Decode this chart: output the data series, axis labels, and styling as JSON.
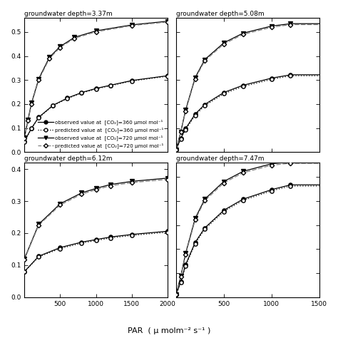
{
  "subplots": [
    {
      "title": "groundwater depth=3.37m",
      "row": 0,
      "col": 0,
      "xlim": [
        0,
        2000
      ],
      "ylim": [
        0,
        0.56
      ],
      "xticks": [
        500,
        1000,
        1500,
        2000
      ],
      "yticks": [
        0.0,
        0.1,
        0.2,
        0.3,
        0.4,
        0.5
      ],
      "show_legend": true,
      "obs360_x": [
        0,
        100,
        200,
        400,
        600,
        800,
        1000,
        1200,
        1500,
        2000
      ],
      "obs360_y": [
        0.045,
        0.1,
        0.145,
        0.195,
        0.225,
        0.248,
        0.265,
        0.278,
        0.298,
        0.318
      ],
      "pred360_x": [
        0,
        100,
        200,
        400,
        600,
        800,
        1000,
        1200,
        1500,
        2000
      ],
      "pred360_y": [
        0.042,
        0.098,
        0.143,
        0.193,
        0.223,
        0.246,
        0.263,
        0.276,
        0.296,
        0.316
      ],
      "obs720_x": [
        0,
        50,
        100,
        200,
        350,
        500,
        700,
        1000,
        1500,
        2000
      ],
      "obs720_y": [
        0.06,
        0.135,
        0.205,
        0.305,
        0.395,
        0.44,
        0.478,
        0.505,
        0.53,
        0.545
      ],
      "pred720_x": [
        0,
        50,
        100,
        200,
        350,
        500,
        700,
        1000,
        1500,
        2000
      ],
      "pred720_y": [
        0.058,
        0.13,
        0.2,
        0.3,
        0.39,
        0.436,
        0.474,
        0.501,
        0.527,
        0.542
      ]
    },
    {
      "title": "groundwater depth=5.08m",
      "row": 0,
      "col": 1,
      "xlim": [
        0,
        1500
      ],
      "ylim": [
        0,
        0.56
      ],
      "xticks": [
        500,
        1000,
        1500
      ],
      "yticks": [
        0.0,
        0.1,
        0.2,
        0.3,
        0.4,
        0.5
      ],
      "show_legend": false,
      "obs360_x": [
        0,
        50,
        100,
        200,
        300,
        500,
        700,
        1000,
        1200
      ],
      "obs360_y": [
        0.01,
        0.058,
        0.098,
        0.158,
        0.198,
        0.248,
        0.278,
        0.308,
        0.322
      ],
      "pred360_x": [
        0,
        50,
        100,
        200,
        300,
        500,
        700,
        1000,
        1200
      ],
      "pred360_y": [
        0.01,
        0.055,
        0.093,
        0.153,
        0.193,
        0.243,
        0.273,
        0.303,
        0.318
      ],
      "obs720_x": [
        0,
        50,
        100,
        200,
        300,
        500,
        700,
        1000,
        1200
      ],
      "obs720_y": [
        0.01,
        0.085,
        0.175,
        0.31,
        0.385,
        0.455,
        0.495,
        0.525,
        0.535
      ],
      "pred720_x": [
        0,
        50,
        100,
        200,
        300,
        500,
        700,
        1000,
        1200
      ],
      "pred720_y": [
        0.01,
        0.083,
        0.17,
        0.305,
        0.38,
        0.45,
        0.49,
        0.52,
        0.531
      ]
    },
    {
      "title": "groundwater depth=6.12m",
      "row": 1,
      "col": 0,
      "xlim": [
        0,
        2000
      ],
      "ylim": [
        0,
        0.42
      ],
      "xticks": [
        500,
        1000,
        1500,
        2000
      ],
      "yticks": [
        0.0,
        0.1,
        0.2,
        0.3,
        0.4
      ],
      "show_legend": false,
      "obs360_x": [
        0,
        200,
        500,
        800,
        1000,
        1200,
        1500,
        2000
      ],
      "obs360_y": [
        0.08,
        0.128,
        0.155,
        0.172,
        0.18,
        0.188,
        0.196,
        0.206
      ],
      "pred360_x": [
        0,
        200,
        500,
        800,
        1000,
        1200,
        1500,
        2000
      ],
      "pred360_y": [
        0.079,
        0.126,
        0.152,
        0.169,
        0.177,
        0.185,
        0.193,
        0.203
      ],
      "obs720_x": [
        0,
        200,
        500,
        800,
        1000,
        1200,
        1500,
        2000
      ],
      "obs720_y": [
        0.12,
        0.228,
        0.292,
        0.326,
        0.34,
        0.352,
        0.362,
        0.372
      ],
      "pred720_x": [
        0,
        200,
        500,
        800,
        1000,
        1200,
        1500,
        2000
      ],
      "pred720_y": [
        0.118,
        0.225,
        0.288,
        0.322,
        0.336,
        0.348,
        0.358,
        0.368
      ]
    },
    {
      "title": "groundwater depth=7.47m",
      "row": 1,
      "col": 1,
      "xlim": [
        0,
        1500
      ],
      "ylim": [
        0,
        0.56
      ],
      "xticks": [
        500,
        1000,
        1500
      ],
      "yticks": [
        0.0,
        0.1,
        0.2,
        0.3,
        0.4,
        0.5
      ],
      "show_legend": false,
      "obs360_x": [
        0,
        50,
        100,
        200,
        300,
        500,
        700,
        1000,
        1200
      ],
      "obs360_y": [
        0.01,
        0.065,
        0.135,
        0.228,
        0.288,
        0.362,
        0.408,
        0.448,
        0.468
      ],
      "pred360_x": [
        0,
        50,
        100,
        200,
        300,
        500,
        700,
        1000,
        1200
      ],
      "pred360_y": [
        0.01,
        0.062,
        0.13,
        0.223,
        0.283,
        0.357,
        0.403,
        0.443,
        0.463
      ],
      "obs720_x": [
        0,
        50,
        100,
        200,
        300,
        500,
        700,
        1000,
        1200
      ],
      "obs720_y": [
        0.01,
        0.088,
        0.182,
        0.328,
        0.408,
        0.482,
        0.524,
        0.556,
        0.564
      ],
      "pred720_x": [
        0,
        50,
        100,
        200,
        300,
        500,
        700,
        1000,
        1200
      ],
      "pred720_y": [
        0.01,
        0.085,
        0.177,
        0.322,
        0.402,
        0.476,
        0.518,
        0.55,
        0.558
      ]
    }
  ],
  "xlabel": "PAR  ( μ molm⁻² s⁻¹ )",
  "legend_entries": [
    "observed value at  [CO₂]=360 μmol mol⁻¹",
    "predicted value at  [CO₂]=360 μmol mol⁻¹",
    "observed value at  [CO₂]=720 μmol mol⁻¹",
    "predicted value at  [CO₂]=720 μmol mol⁻¹"
  ]
}
